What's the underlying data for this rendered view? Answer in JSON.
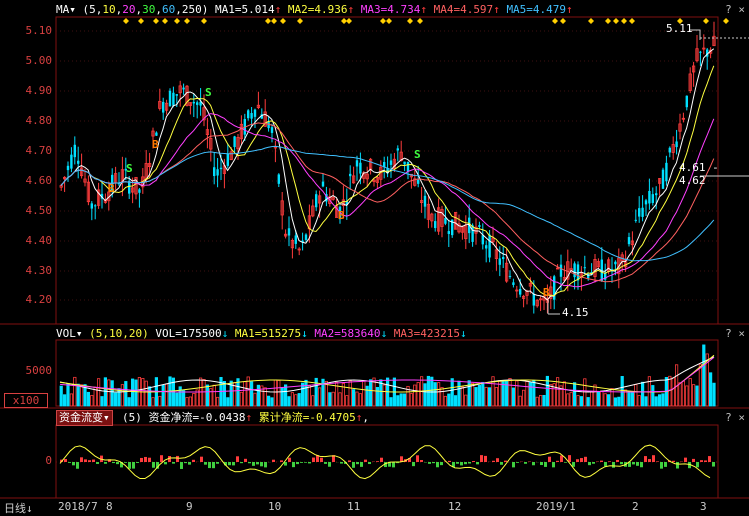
{
  "price_panel": {
    "indicator": "MA",
    "indicator_suffix": "▾",
    "params_prefix": "(",
    "params": [
      {
        "v": "5",
        "color": "#ffffff"
      },
      {
        "v": "10",
        "color": "#ffff40"
      },
      {
        "v": "20",
        "color": "#ff40ff"
      },
      {
        "v": "30",
        "color": "#40ff40"
      },
      {
        "v": "60",
        "color": "#40c0ff"
      },
      {
        "v": "250",
        "color": "#ffffff"
      }
    ],
    "params_suffix": ")",
    "ma_values": [
      {
        "label": "MA1=5.014",
        "arrow": "↑",
        "color": "#ffffff"
      },
      {
        "label": "MA2=4.936",
        "arrow": "↑",
        "color": "#ffff40"
      },
      {
        "label": "MA3=4.734",
        "arrow": "↑",
        "color": "#ff40ff"
      },
      {
        "label": "MA4=4.597",
        "arrow": "↑",
        "color": "#ff6060"
      },
      {
        "label": "MA5=4.479",
        "arrow": "↑",
        "color": "#40c0ff"
      }
    ],
    "y_ticks": [
      "5.10",
      "5.00",
      "4.90",
      "4.80",
      "4.70",
      "4.60",
      "4.50",
      "4.40",
      "4.30",
      "4.20"
    ],
    "high_label": "5.11",
    "low_label": "4.15",
    "range_label": "4.61 - 4.62",
    "signals": [
      {
        "t": "B",
        "color": "#ff7a00"
      },
      {
        "t": "S",
        "color": "#40ff40"
      },
      {
        "t": "B",
        "color": "#ff7a00"
      },
      {
        "t": "S",
        "color": "#40ff40"
      },
      {
        "t": "B",
        "color": "#ff7a00"
      },
      {
        "t": "S",
        "color": "#40ff40"
      },
      {
        "t": "B",
        "color": "#ff7a00"
      }
    ],
    "corner_button": "?",
    "corner_close": "×"
  },
  "volume_panel": {
    "indicator": "VOL",
    "indicator_suffix": "▾",
    "params": "(5,10,20)",
    "values": [
      {
        "label": "VOL=175500",
        "arrow": "↓",
        "color": "#ffffff"
      },
      {
        "label": "MA1=515275",
        "arrow": "↓",
        "color": "#ffff40"
      },
      {
        "label": "MA2=583640",
        "arrow": "↓",
        "color": "#ff40ff"
      },
      {
        "label": "MA3=423215",
        "arrow": "↓",
        "color": "#ff6060"
      }
    ],
    "y_tick": "5000",
    "unit_label": "x100",
    "corner_button": "?",
    "corner_close": "×"
  },
  "flow_panel": {
    "indicator": "资金流变",
    "indicator_suffix": "▾",
    "param": "(5)",
    "values": [
      {
        "label": "资金净流=-0.0438",
        "arrow": "↑",
        "color": "#ffffff"
      },
      {
        "label": "累计净流=-0.4705",
        "arrow": "↑",
        "color": "#ffff40"
      }
    ],
    "trailing": ",",
    "y_tick": "0",
    "corner_button": "?",
    "corner_close": "×"
  },
  "x_axis": {
    "period_label": "日线",
    "period_icon": "↓",
    "labels": [
      "2018/7",
      "8",
      "9",
      "10",
      "11",
      "12",
      "2019/1",
      "2",
      "3"
    ]
  },
  "colors": {
    "up": "#ff3c3c",
    "down": "#00e0ff",
    "grid": "#801010",
    "axis_text": "#d84040"
  }
}
